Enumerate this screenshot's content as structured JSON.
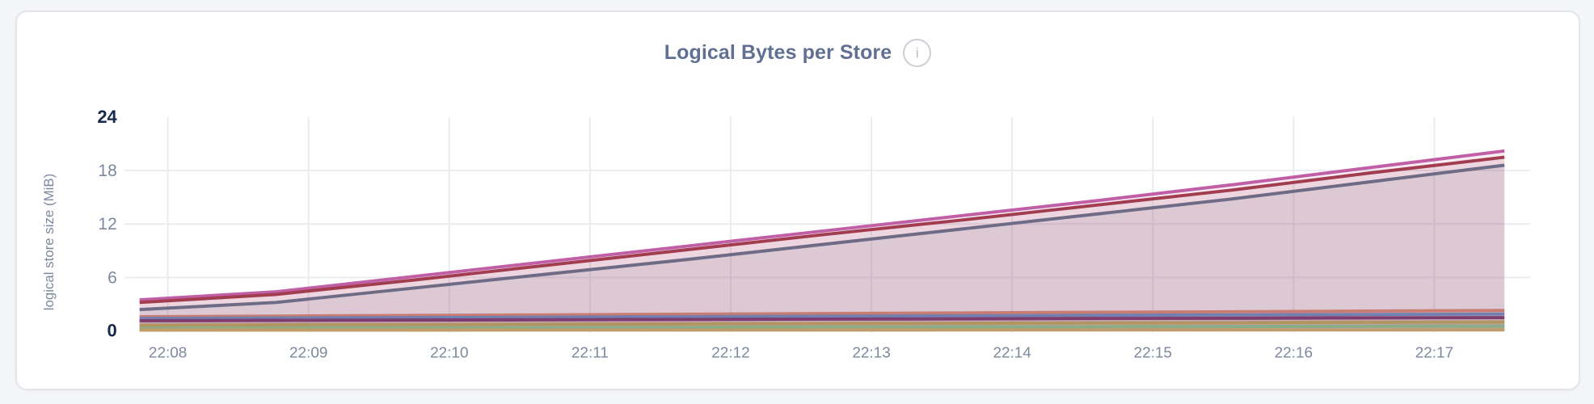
{
  "header": {
    "info_glyph": "i",
    "info_icon_name": "info-icon"
  },
  "chart_data": {
    "type": "area",
    "title": "Logical Bytes per Store",
    "xlabel": "",
    "ylabel": "logical store size (MiB)",
    "ylim": [
      0,
      24
    ],
    "yticks": [
      0,
      6,
      12,
      18,
      24
    ],
    "ytick_emphasis": [
      0,
      24
    ],
    "xticklabels": [
      "22:08",
      "22:09",
      "22:10",
      "22:11",
      "22:12",
      "22:13",
      "22:14",
      "22:15",
      "22:16",
      "22:17"
    ],
    "grid": true,
    "legend_position": "none",
    "series": [
      {
        "name": "pink",
        "color": "#c05fa5",
        "values": [
          3.5,
          4.4,
          6.1,
          7.8,
          9.5,
          11.2,
          12.9,
          14.6,
          16.4,
          18.3,
          20.2
        ]
      },
      {
        "name": "maroon",
        "color": "#a23d50",
        "values": [
          3.2,
          4.1,
          5.7,
          7.4,
          9.1,
          10.8,
          12.4,
          14.1,
          15.8,
          17.7,
          19.5
        ]
      },
      {
        "name": "slate",
        "color": "#6d6b85",
        "values": [
          2.4,
          3.2,
          4.8,
          6.4,
          8.0,
          9.7,
          11.4,
          13.1,
          14.8,
          16.7,
          18.6
        ]
      },
      {
        "name": "salmon",
        "color": "#c97c72",
        "values": [
          1.6,
          1.67,
          1.74,
          1.81,
          1.88,
          1.95,
          2.02,
          2.09,
          2.16,
          2.23,
          2.3
        ]
      },
      {
        "name": "blue",
        "color": "#7180b0",
        "values": [
          1.4,
          1.45,
          1.5,
          1.55,
          1.6,
          1.65,
          1.7,
          1.75,
          1.8,
          1.85,
          1.9
        ]
      },
      {
        "name": "plum",
        "color": "#7e3d6d",
        "values": [
          1.15,
          1.19,
          1.22,
          1.26,
          1.29,
          1.33,
          1.36,
          1.4,
          1.43,
          1.47,
          1.5
        ]
      },
      {
        "name": "gold",
        "color": "#b3955f",
        "values": [
          0.65,
          0.69,
          0.72,
          0.76,
          0.79,
          0.83,
          0.86,
          0.9,
          0.93,
          0.97,
          1.0
        ]
      },
      {
        "name": "green",
        "color": "#8aac86",
        "values": [
          0.3,
          0.33,
          0.35,
          0.38,
          0.4,
          0.43,
          0.45,
          0.48,
          0.5,
          0.53,
          0.55
        ]
      },
      {
        "name": "tan",
        "color": "#bf9c6a",
        "values": [
          0.1,
          0.1,
          0.1,
          0.11,
          0.11,
          0.11,
          0.12,
          0.12,
          0.12,
          0.12,
          0.12
        ]
      }
    ],
    "style": {
      "grid_color": "#ebebf0",
      "fill_opacity": 0.12,
      "line_width": 4
    }
  }
}
